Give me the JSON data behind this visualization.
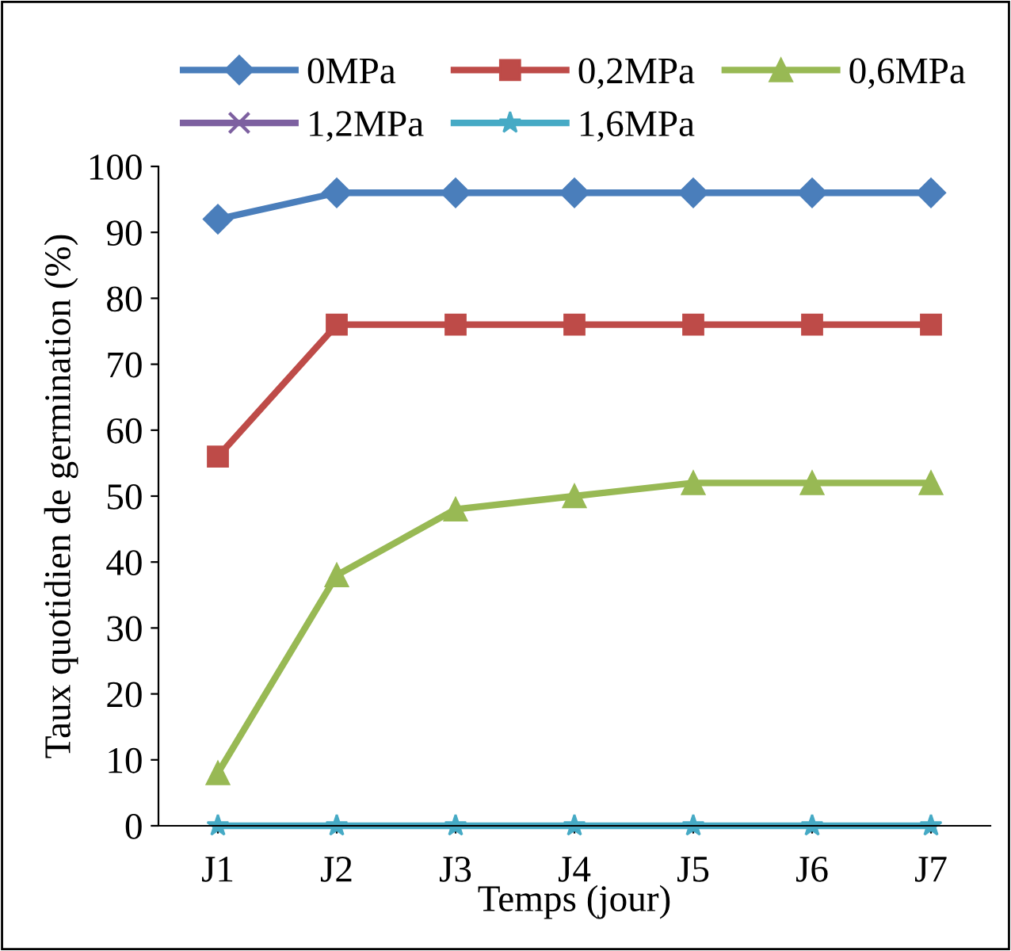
{
  "chart_data": {
    "type": "line",
    "xlabel": "Temps (jour)",
    "ylabel": "Taux quotidien de germination (%)",
    "categories": [
      "J1",
      "J2",
      "J3",
      "J4",
      "J5",
      "J6",
      "J7"
    ],
    "series": [
      {
        "name": "0MPa",
        "color": "#4a7ebb",
        "marker": "diamond",
        "values": [
          92,
          96,
          96,
          96,
          96,
          96,
          96
        ]
      },
      {
        "name": "0,2MPa",
        "color": "#be4b48",
        "marker": "square",
        "values": [
          56,
          76,
          76,
          76,
          76,
          76,
          76
        ]
      },
      {
        "name": "0,6MPa",
        "color": "#98b954",
        "marker": "triangle",
        "values": [
          8,
          38,
          48,
          50,
          52,
          52,
          52
        ]
      },
      {
        "name": "1,2MPa",
        "color": "#7d60a0",
        "marker": "cross",
        "values": [
          null,
          null,
          null,
          null,
          null,
          null,
          null
        ]
      },
      {
        "name": "1,6MPa",
        "color": "#46aac5",
        "marker": "star",
        "values": [
          0,
          0,
          0,
          0,
          0,
          0,
          0
        ]
      }
    ],
    "ylim": [
      0,
      100
    ],
    "yticks": [
      0,
      10,
      20,
      30,
      40,
      50,
      60,
      70,
      80,
      90,
      100
    ],
    "grid": false,
    "legend": "top",
    "line_style": "solid"
  }
}
